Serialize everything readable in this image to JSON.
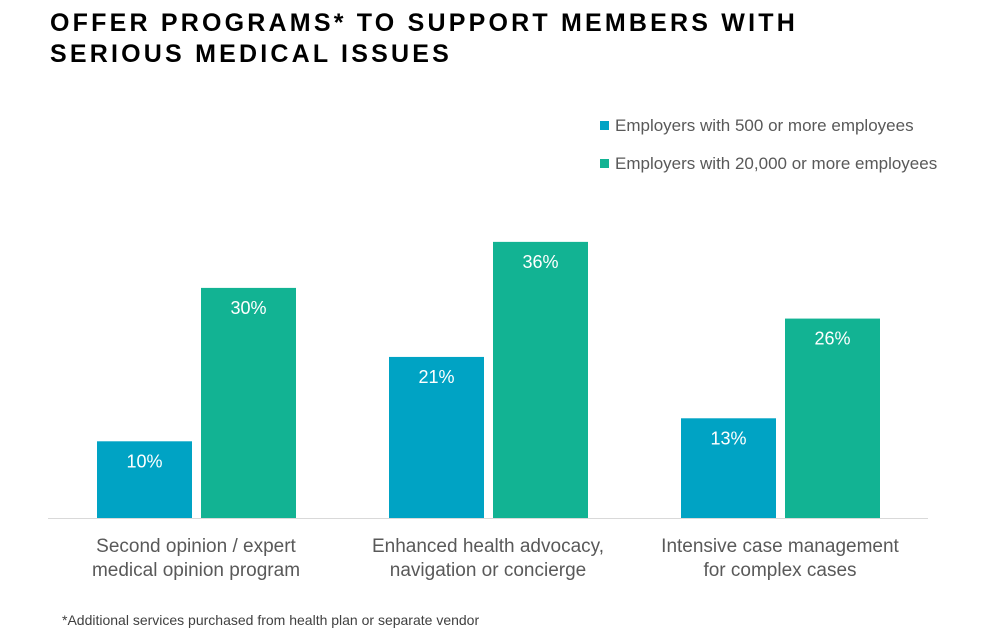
{
  "title_lines": [
    "OFFER PROGRAMS* TO SUPPORT MEMBERS WITH",
    "SERIOUS MEDICAL ISSUES"
  ],
  "footnote": "*Additional services purchased from health plan or separate vendor",
  "colors": {
    "series_500": "#00A3C4",
    "series_20000": "#12B393",
    "axis": "#D9D9D9",
    "label_text": "#595959"
  },
  "chart_data": {
    "type": "bar",
    "title": "OFFER PROGRAMS* TO SUPPORT MEMBERS WITH SERIOUS MEDICAL ISSUES",
    "categories": [
      [
        "Second opinion / expert",
        "medical opinion program"
      ],
      [
        "Enhanced health advocacy,",
        "navigation or concierge"
      ],
      [
        "Intensive case management",
        "for complex cases"
      ]
    ],
    "series": [
      {
        "name": "Employers with 500 or more employees",
        "values": [
          10,
          21,
          13
        ],
        "labels": [
          "10%",
          "21%",
          "13%"
        ],
        "color": "#00A3C4"
      },
      {
        "name": "Employers with 20,000 or more employees",
        "values": [
          30,
          36,
          26
        ],
        "labels": [
          "30%",
          "36%",
          "26%"
        ],
        "color": "#12B393"
      }
    ],
    "ylim": [
      0,
      36
    ],
    "grid": false,
    "legend_position": "top-right",
    "data_labels": "inside-top"
  }
}
